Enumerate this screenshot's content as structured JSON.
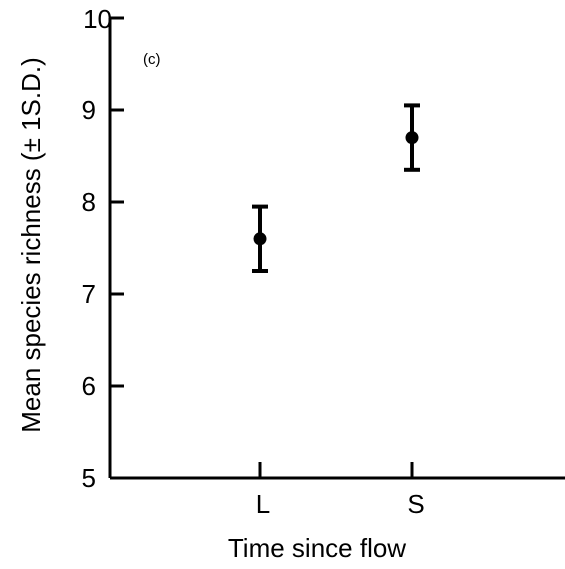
{
  "chart_data": {
    "type": "scatter",
    "panel_label": "(c)",
    "xlabel": "Time since flow",
    "ylabel": "Mean species richness (± 1S.D.)",
    "categories": [
      "L",
      "S"
    ],
    "series": [
      {
        "values": [
          7.6,
          8.7
        ],
        "error_low": [
          7.25,
          8.35
        ],
        "error_high": [
          7.95,
          9.05
        ]
      }
    ],
    "ylim": [
      5,
      10
    ],
    "yticks": [
      "5",
      "6",
      "7",
      "8",
      "9",
      "10"
    ],
    "grid": false,
    "legend": "none",
    "color": "#000000"
  }
}
